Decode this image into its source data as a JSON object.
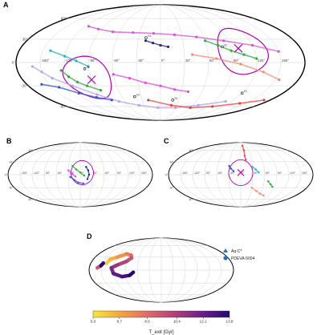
{
  "chart_data": [
    {
      "panel": "A",
      "type": "scatter",
      "projection": "mollweide",
      "longitude_ticks": [
        "-150°",
        "-120°",
        "-90°",
        "-60°",
        "-30°",
        "0°",
        "30°",
        "60°",
        "90°",
        "120°",
        "150°"
      ],
      "latitude_ticks": [
        "60°",
        "30°",
        "0°",
        "-30°",
        "-60°"
      ],
      "markers_cross": [
        {
          "lon": -90,
          "lat": -22
        },
        {
          "lon": 100,
          "lat": 18
        }
      ],
      "circles_deg": [
        {
          "lon": -95,
          "lat": -20,
          "r": 28
        },
        {
          "lon": 105,
          "lat": 15,
          "r": 30
        }
      ],
      "annotations": [
        "H3",
        "S1",
        "S2",
        "S3",
        "S4",
        "S5"
      ],
      "tracks": [
        {
          "color": "#d84fd8",
          "points": [
            [
              -115,
              48
            ],
            [
              -95,
              44
            ],
            [
              -70,
              40
            ],
            [
              -40,
              39
            ],
            [
              -10,
              38
            ],
            [
              20,
              36
            ],
            [
              50,
              33
            ],
            [
              85,
              28
            ],
            [
              120,
              22
            ],
            [
              150,
              14
            ]
          ]
        },
        {
          "color": "#b8a0ee",
          "points": [
            [
              -160,
              -5
            ],
            [
              -150,
              -12
            ],
            [
              -140,
              -20
            ],
            [
              -120,
              -30
            ],
            [
              -95,
              -42
            ],
            [
              -70,
              -52
            ],
            [
              -40,
              -58
            ],
            [
              -5,
              -62
            ],
            [
              30,
              -62
            ],
            [
              70,
              -58
            ],
            [
              110,
              -52
            ]
          ]
        },
        {
          "color": "#e84040",
          "points": [
            [
              -20,
              -50
            ],
            [
              20,
              -58
            ],
            [
              60,
              -62
            ],
            [
              100,
              -60
            ],
            [
              140,
              -55
            ],
            [
              170,
              -50
            ]
          ]
        },
        {
          "color": "#2faa3a",
          "points": [
            [
              -125,
              -10
            ],
            [
              -118,
              -18
            ],
            [
              -110,
              -25
            ],
            [
              -100,
              -30
            ],
            [
              -85,
              -36
            ]
          ]
        },
        {
          "color": "#25b3c2",
          "points": [
            [
              -140,
              15
            ],
            [
              -120,
              8
            ],
            [
              -105,
              2
            ],
            [
              -90,
              -5
            ]
          ]
        },
        {
          "color": "#3355cc",
          "points": [
            [
              -160,
              -28
            ],
            [
              -140,
              -32
            ],
            [
              -120,
              -40
            ],
            [
              -100,
              -46
            ],
            [
              -80,
              -50
            ]
          ]
        },
        {
          "color": "#f08a7a",
          "points": [
            [
              40,
              10
            ],
            [
              70,
              5
            ],
            [
              100,
              -2
            ],
            [
              130,
              -12
            ],
            [
              155,
              -22
            ]
          ]
        },
        {
          "color": "#1a2a8a",
          "points": [
            [
              -20,
              28
            ],
            [
              -10,
              25
            ],
            [
              0,
              22
            ],
            [
              10,
              20
            ]
          ]
        },
        {
          "color": "#d84fd8",
          "points": [
            [
              -60,
              -15
            ],
            [
              -40,
              -20
            ],
            [
              -20,
              -26
            ],
            [
              0,
              -30
            ],
            [
              20,
              -35
            ],
            [
              40,
              -38
            ]
          ]
        },
        {
          "color": "#2faa3a",
          "points": [
            [
              60,
              28
            ],
            [
              75,
              22
            ],
            [
              90,
              15
            ],
            [
              105,
              10
            ],
            [
              120,
              5
            ]
          ]
        }
      ]
    },
    {
      "panel": "B",
      "type": "scatter",
      "projection": "mollweide",
      "longitude_ticks": [
        "-150°",
        "-120°",
        "-90°",
        "-60°",
        "-30°",
        "0°",
        "30°",
        "60°",
        "90°",
        "120°",
        "150°"
      ],
      "latitude_ticks": [
        "60°",
        "30°",
        "0°",
        "-30°",
        "-60°"
      ],
      "circles_deg": [
        {
          "lon": 5,
          "lat": 5,
          "r": 28
        }
      ],
      "tracks": [
        {
          "color": "#2faa3a",
          "points": [
            [
              -20,
              20
            ],
            [
              -10,
              12
            ],
            [
              0,
              5
            ],
            [
              10,
              -2
            ]
          ]
        },
        {
          "color": "#3355cc",
          "points": [
            [
              -25,
              -5
            ],
            [
              -15,
              -12
            ],
            [
              -5,
              -18
            ],
            [
              8,
              -20
            ]
          ]
        },
        {
          "color": "#1a2a8a",
          "points": [
            [
              15,
              18
            ],
            [
              20,
              10
            ],
            [
              22,
              0
            ],
            [
              18,
              -10
            ]
          ]
        },
        {
          "color": "#d84fd8",
          "points": [
            [
              -30,
              10
            ],
            [
              -20,
              2
            ],
            [
              -12,
              -4
            ]
          ]
        }
      ]
    },
    {
      "panel": "C",
      "type": "scatter",
      "projection": "mollweide",
      "longitude_ticks": [
        "-150°",
        "-120°",
        "-90°",
        "-60°",
        "-30°",
        "0°",
        "30°",
        "60°",
        "90°",
        "120°",
        "150°"
      ],
      "latitude_ticks": [
        "60°",
        "30°",
        "0°",
        "-30°",
        "-60°"
      ],
      "markers_cross": [
        {
          "lon": 0,
          "lat": 5
        }
      ],
      "circles_deg": [
        {
          "lon": 0,
          "lat": 5,
          "r": 30
        }
      ],
      "tracks": [
        {
          "color": "#e84040",
          "points": [
            [
              10,
              75
            ],
            [
              12,
              60
            ],
            [
              12,
              45
            ],
            [
              14,
              35
            ]
          ]
        },
        {
          "color": "#f08a7a",
          "points": [
            [
              30,
              -30
            ],
            [
              45,
              -38
            ],
            [
              60,
              -45
            ],
            [
              75,
              -50
            ]
          ]
        },
        {
          "color": "#3355cc",
          "points": [
            [
              -30,
              20
            ],
            [
              -25,
              14
            ],
            [
              -18,
              8
            ]
          ]
        },
        {
          "color": "#2faa3a",
          "points": [
            [
              70,
              -15
            ],
            [
              78,
              -22
            ],
            [
              85,
              -28
            ]
          ]
        },
        {
          "color": "#25b3c2",
          "points": [
            [
              30,
              18
            ],
            [
              38,
              12
            ],
            [
              45,
              5
            ]
          ]
        }
      ]
    },
    {
      "panel": "D",
      "type": "scatter",
      "projection": "mollweide",
      "legend": [
        {
          "symbol": "triangle",
          "label": "Aq-C*"
        },
        {
          "symbol": "circle",
          "label": "PDEVA-5004"
        }
      ],
      "colorbar": {
        "label": "T_exit [Gyr]",
        "ticks": [
          "5.0",
          "6.7",
          "8.5",
          "10.4",
          "12.1",
          "13.8"
        ],
        "range": [
          5.0,
          13.8
        ],
        "colors": [
          "#f5e83a",
          "#f4a63e",
          "#e06a6a",
          "#b0407a",
          "#6b1f8a",
          "#240a6e"
        ]
      },
      "tracks": [
        {
          "age_colored": true,
          "points": [
            [
              -140,
              15
            ],
            [
              -135,
              25
            ],
            [
              -120,
              30
            ],
            [
              -100,
              38
            ],
            [
              -85,
              35
            ],
            [
              -80,
              28
            ],
            [
              -90,
              20
            ],
            [
              -110,
              12
            ],
            [
              -125,
              5
            ],
            [
              -120,
              -8
            ],
            [
              -100,
              -15
            ],
            [
              -80,
              -12
            ],
            [
              -70,
              -5
            ]
          ]
        },
        {
          "age_colored": true,
          "points": [
            [
              -160,
              5
            ],
            [
              -152,
              10
            ],
            [
              -148,
              16
            ]
          ]
        }
      ]
    }
  ]
}
